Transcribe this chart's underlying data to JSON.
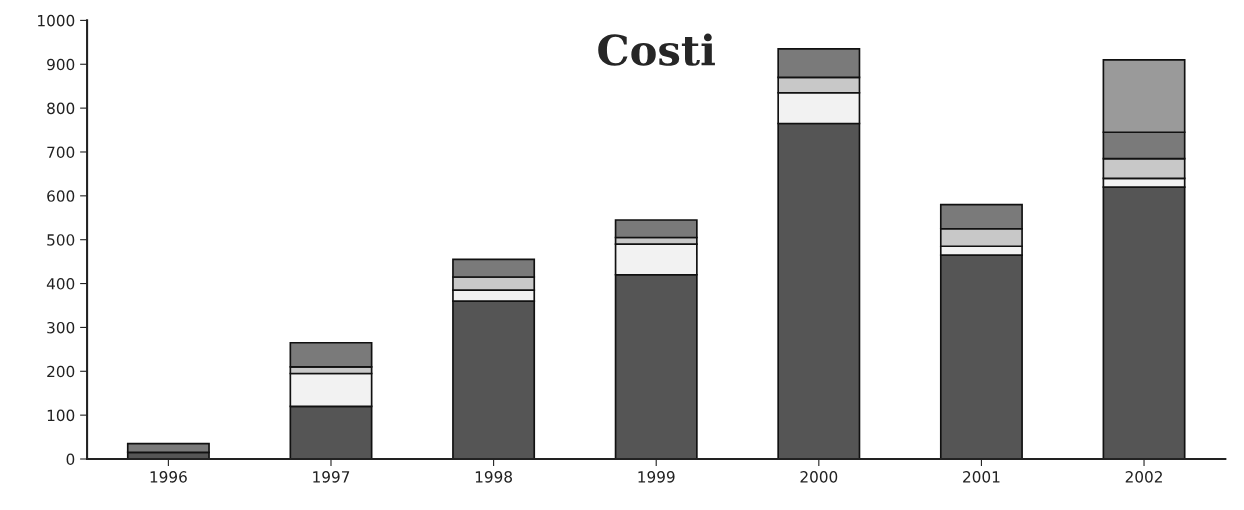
{
  "chart_data": {
    "type": "bar",
    "title": "Costi",
    "stacked": true,
    "categories": [
      "1996",
      "1997",
      "1998",
      "1999",
      "2000",
      "2001",
      "2002"
    ],
    "series": [
      {
        "color": "#555555",
        "values": [
          15,
          120,
          360,
          420,
          765,
          465,
          620
        ]
      },
      {
        "color": "#f2f2f2",
        "values": [
          null,
          75,
          25,
          70,
          70,
          20,
          20
        ]
      },
      {
        "color": "#c8c8c8",
        "values": [
          null,
          15,
          30,
          15,
          35,
          40,
          45
        ]
      },
      {
        "color": "#7a7a7a",
        "values": [
          20,
          55,
          40,
          40,
          65,
          55,
          60
        ]
      },
      {
        "color": "#9a9a9a",
        "values": [
          null,
          null,
          null,
          null,
          null,
          null,
          165
        ]
      }
    ],
    "ylim": [
      0,
      1000
    ],
    "yticks": [
      0,
      100,
      200,
      300,
      400,
      500,
      600,
      700,
      800,
      900,
      1000
    ],
    "grid": false,
    "legend": false
  }
}
